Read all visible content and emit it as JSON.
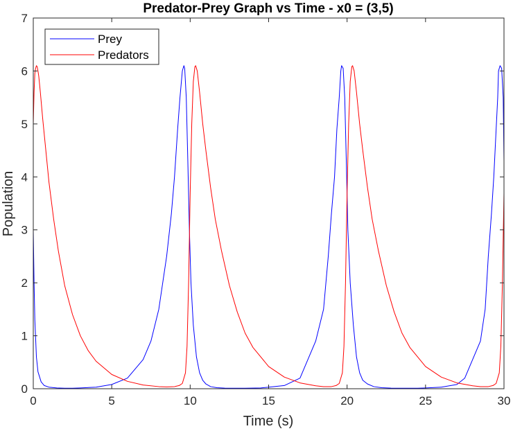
{
  "chart_data": {
    "type": "line",
    "title": "Predator-Prey Graph vs Time - x0 = (3,5)",
    "xlabel": "Time (s)",
    "ylabel": "Population",
    "xlim": [
      0,
      30
    ],
    "ylim": [
      0,
      7
    ],
    "xticks": [
      "0",
      "5",
      "10",
      "15",
      "20",
      "25",
      "30"
    ],
    "yticks": [
      "0",
      "1",
      "2",
      "3",
      "4",
      "5",
      "6",
      "7"
    ],
    "grid": false,
    "legend_position": "top-left",
    "series": [
      {
        "name": "Prey",
        "color": "#0000ff",
        "x": [
          0,
          0.05,
          0.1,
          0.2,
          0.3,
          0.5,
          0.7,
          1.0,
          1.5,
          2.0,
          2.5,
          3.0,
          4.0,
          5.0,
          6.0,
          7.0,
          7.5,
          8.0,
          8.5,
          8.8,
          9.0,
          9.2,
          9.35,
          9.5,
          9.6,
          9.65,
          9.75,
          9.85,
          9.95,
          10.05,
          10.2,
          10.4,
          10.6,
          10.8,
          11.0,
          11.3,
          11.7,
          12.2,
          12.8,
          13.5,
          14.5,
          15.0,
          16.0,
          17.0,
          17.5,
          18.0,
          18.5,
          18.8,
          19.0,
          19.2,
          19.35,
          19.5,
          19.6,
          19.65,
          19.75,
          19.85,
          19.95,
          20.05,
          20.2,
          20.4,
          20.6,
          20.8,
          21.0,
          21.3,
          21.7,
          22.2,
          22.8,
          23.5,
          24.5,
          25.0,
          26.0,
          27.0,
          27.5,
          28.0,
          28.5,
          28.8,
          29.0,
          29.2,
          29.35,
          29.5,
          29.6,
          29.65,
          29.75,
          29.85,
          29.95,
          30.0
        ],
        "values": [
          3.0,
          2.0,
          1.3,
          0.6,
          0.32,
          0.13,
          0.06,
          0.03,
          0.015,
          0.01,
          0.01,
          0.015,
          0.03,
          0.08,
          0.2,
          0.55,
          0.9,
          1.5,
          2.5,
          3.3,
          4.0,
          4.9,
          5.5,
          6.0,
          6.1,
          6.05,
          5.5,
          4.3,
          3.0,
          2.0,
          1.2,
          0.6,
          0.3,
          0.16,
          0.09,
          0.04,
          0.02,
          0.012,
          0.01,
          0.01,
          0.015,
          0.03,
          0.06,
          0.2,
          0.55,
          0.9,
          1.5,
          2.5,
          3.3,
          4.0,
          4.9,
          5.5,
          6.0,
          6.1,
          6.05,
          5.5,
          4.3,
          3.0,
          2.0,
          1.2,
          0.6,
          0.3,
          0.16,
          0.09,
          0.04,
          0.02,
          0.012,
          0.01,
          0.01,
          0.015,
          0.03,
          0.08,
          0.2,
          0.55,
          0.9,
          1.5,
          2.5,
          3.3,
          4.0,
          4.9,
          5.5,
          6.0,
          6.1,
          6.05,
          5.5,
          4.3
        ]
      },
      {
        "name": "Predators",
        "color": "#ff0000",
        "x": [
          0,
          0.05,
          0.1,
          0.15,
          0.2,
          0.25,
          0.3,
          0.35,
          0.45,
          0.6,
          0.8,
          1.0,
          1.3,
          1.6,
          2.0,
          2.5,
          3.0,
          3.5,
          4.0,
          5.0,
          6.0,
          7.0,
          8.0,
          8.5,
          9.0,
          9.3,
          9.5,
          9.7,
          9.8,
          9.9,
          10.0,
          10.1,
          10.2,
          10.3,
          10.35,
          10.45,
          10.6,
          10.8,
          11.0,
          11.3,
          11.6,
          12.0,
          12.5,
          13.0,
          13.5,
          14.0,
          15.0,
          16.0,
          17.0,
          18.0,
          18.5,
          19.0,
          19.3,
          19.5,
          19.7,
          19.8,
          19.9,
          20.0,
          20.1,
          20.2,
          20.3,
          20.35,
          20.45,
          20.6,
          20.8,
          21.0,
          21.3,
          21.6,
          22.0,
          22.5,
          23.0,
          23.5,
          24.0,
          25.0,
          26.0,
          27.0,
          28.0,
          28.5,
          29.0,
          29.3,
          29.5,
          29.7,
          29.8,
          29.9,
          30.0
        ],
        "values": [
          5.0,
          5.6,
          5.95,
          6.05,
          6.1,
          6.08,
          6.0,
          5.9,
          5.6,
          5.1,
          4.5,
          3.9,
          3.2,
          2.6,
          1.95,
          1.4,
          1.0,
          0.72,
          0.52,
          0.27,
          0.14,
          0.07,
          0.04,
          0.035,
          0.04,
          0.06,
          0.1,
          0.3,
          0.8,
          2.0,
          3.7,
          5.0,
          5.8,
          6.08,
          6.1,
          6.0,
          5.6,
          5.0,
          4.5,
          3.8,
          3.2,
          2.6,
          1.95,
          1.45,
          1.05,
          0.78,
          0.42,
          0.22,
          0.11,
          0.055,
          0.04,
          0.04,
          0.06,
          0.1,
          0.3,
          0.8,
          2.0,
          3.7,
          5.0,
          5.8,
          6.08,
          6.1,
          6.0,
          5.6,
          5.0,
          4.5,
          3.8,
          3.2,
          2.6,
          1.95,
          1.45,
          1.05,
          0.78,
          0.42,
          0.22,
          0.11,
          0.055,
          0.04,
          0.04,
          0.06,
          0.1,
          0.3,
          0.8,
          2.0,
          3.7
        ]
      }
    ]
  }
}
